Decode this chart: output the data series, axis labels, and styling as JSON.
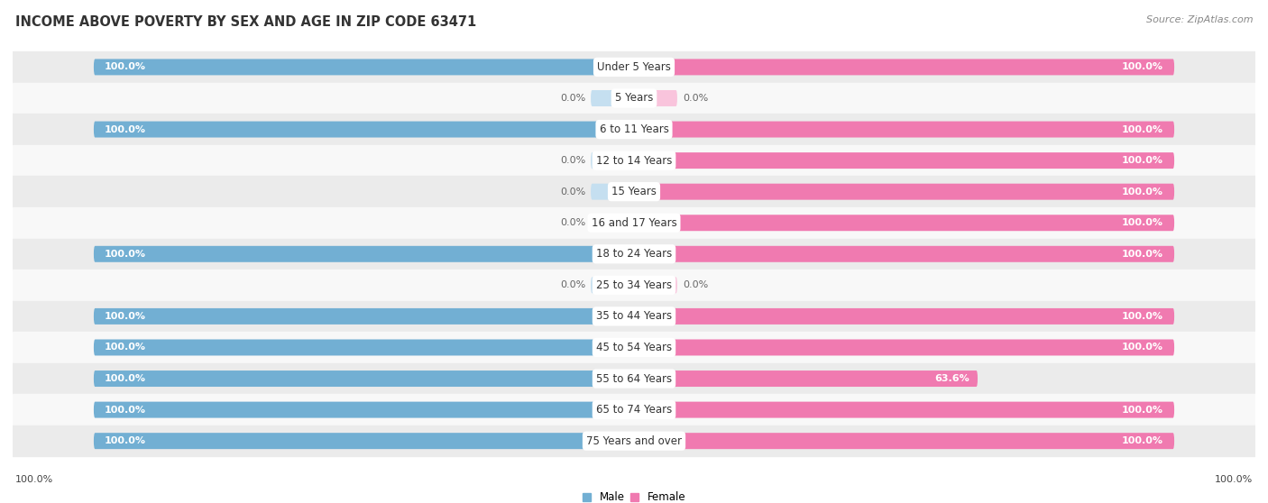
{
  "title": "INCOME ABOVE POVERTY BY SEX AND AGE IN ZIP CODE 63471",
  "source": "Source: ZipAtlas.com",
  "categories": [
    "Under 5 Years",
    "5 Years",
    "6 to 11 Years",
    "12 to 14 Years",
    "15 Years",
    "16 and 17 Years",
    "18 to 24 Years",
    "25 to 34 Years",
    "35 to 44 Years",
    "45 to 54 Years",
    "55 to 64 Years",
    "65 to 74 Years",
    "75 Years and over"
  ],
  "male_values": [
    100.0,
    0.0,
    100.0,
    0.0,
    0.0,
    0.0,
    100.0,
    0.0,
    100.0,
    100.0,
    100.0,
    100.0,
    100.0
  ],
  "female_values": [
    100.0,
    0.0,
    100.0,
    100.0,
    100.0,
    100.0,
    100.0,
    0.0,
    100.0,
    100.0,
    63.6,
    100.0,
    100.0
  ],
  "male_color": "#72afd3",
  "female_color": "#f07ab0",
  "male_color_light": "#c5dff0",
  "female_color_light": "#f9c4dc",
  "bg_dark": "#ebebeb",
  "bg_light": "#f8f8f8",
  "bar_height": 0.52,
  "xlim_max": 100,
  "title_fontsize": 10.5,
  "label_fontsize": 8.5,
  "cat_fontsize": 8.5,
  "source_fontsize": 8,
  "value_fontsize": 8
}
